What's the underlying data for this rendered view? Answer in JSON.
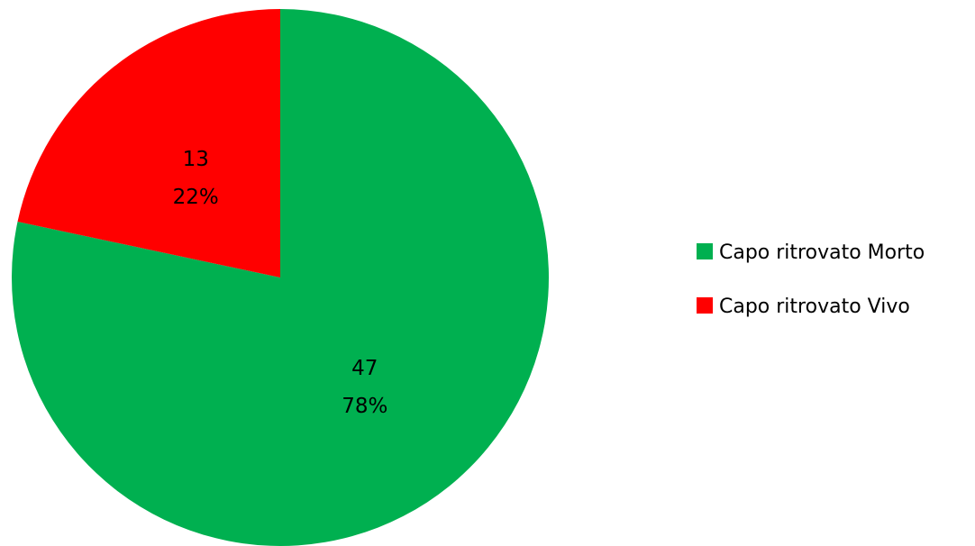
{
  "chart_data": {
    "type": "pie",
    "title": "",
    "legend_position": "right",
    "start_angle_deg": 0,
    "direction": "clockwise",
    "slices": [
      {
        "name": "Capo ritrovato Morto",
        "value": 47,
        "percent_label": "78%",
        "color": "#00B050"
      },
      {
        "name": "Capo ritrovato Vivo",
        "value": 13,
        "percent_label": "22%",
        "color": "#FF0000"
      }
    ]
  }
}
